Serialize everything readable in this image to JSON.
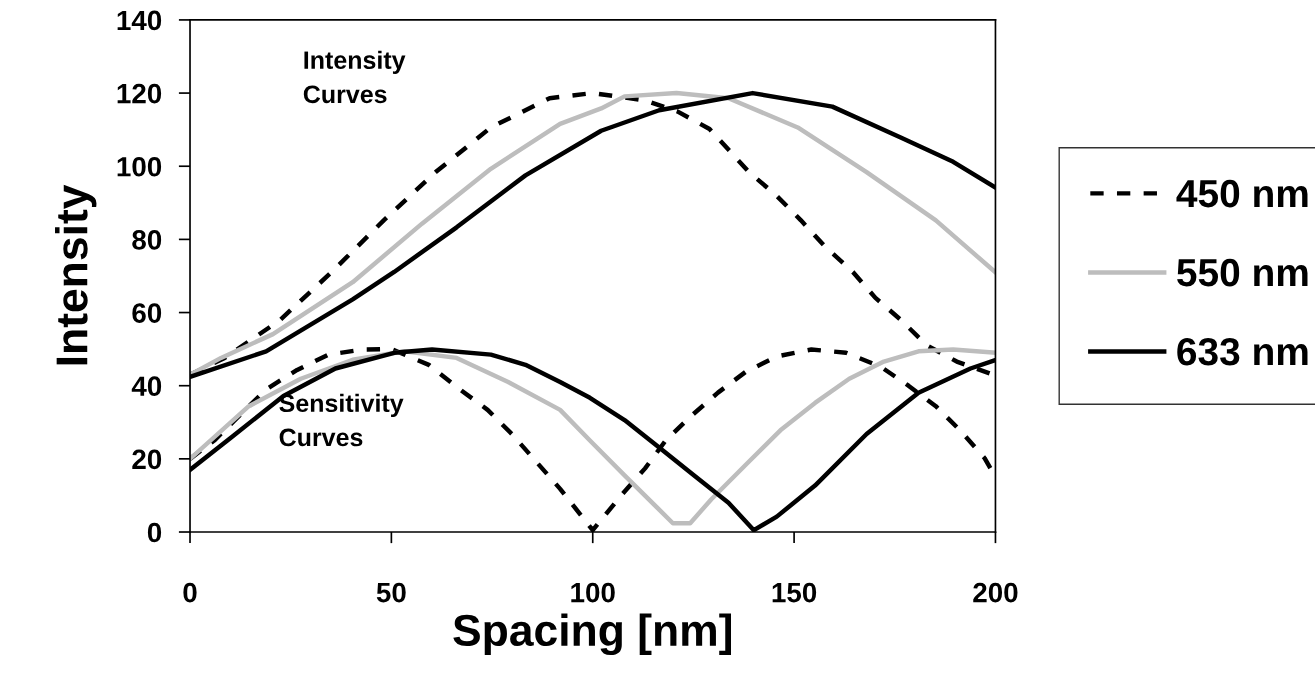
{
  "chart_data": {
    "type": "line",
    "xlabel": "Spacing [nm]",
    "ylabel": "Intensity",
    "xlim": [
      0,
      200
    ],
    "xticks": [
      0,
      50,
      100,
      150,
      200
    ],
    "ylim": [
      0,
      140
    ],
    "yticks": [
      0,
      20,
      40,
      60,
      80,
      100,
      120,
      140
    ],
    "grid": false,
    "legend": "right",
    "marker": "none",
    "annotations": [
      "Intensity\nCurves",
      "Sensitivity\nCurves"
    ],
    "series": [
      {
        "name": "450 nm",
        "color": "#000000",
        "line_style": "dashed",
        "x": [
          0,
          8.6,
          22.3,
          35.2,
          48.1,
          61,
          74.7,
          89.3,
          100,
          113,
          121,
          129,
          138.8,
          145.6,
          151.7,
          157.7,
          164.6,
          170.2,
          176.6,
          183,
          190.4,
          200
        ],
        "values": [
          43,
          47.6,
          57.9,
          71.1,
          85.2,
          98.4,
          110.6,
          118.6,
          120,
          118,
          115,
          110.2,
          98.4,
          92,
          85.2,
          78,
          71.1,
          64,
          57.9,
          51,
          46.6,
          42.8
        ]
      },
      {
        "name": "550 nm",
        "color": "#bdbdbd",
        "line_style": "solid",
        "x": [
          0,
          7.7,
          20.6,
          40.4,
          57.6,
          74.7,
          91.9,
          102.1,
          107.9,
          120.8,
          133.7,
          150.9,
          168,
          185.2,
          200
        ],
        "values": [
          43,
          47.6,
          54.1,
          68.3,
          84.3,
          99.3,
          111.6,
          115.8,
          119.1,
          120,
          118.6,
          110.6,
          98.4,
          85.2,
          71
        ]
      },
      {
        "name": "633 nm",
        "color": "#000000",
        "line_style": "solid",
        "x": [
          0,
          18.9,
          40.4,
          50.7,
          66.2,
          83.3,
          102.1,
          116.5,
          139.7,
          159.5,
          176.6,
          189.5,
          200
        ],
        "values": [
          42.4,
          49.4,
          63.6,
          71.1,
          83.3,
          97.5,
          109.7,
          115.3,
          120,
          116.3,
          107.8,
          101.2,
          94.2
        ]
      },
      {
        "color": "#000000",
        "line_style": "dashed",
        "x": [
          0,
          6,
          18.9,
          26.6,
          34.4,
          43,
          50,
          59.3,
          67,
          73.9,
          79.9,
          85.9,
          91.9,
          100,
          107,
          113,
          118.1,
          124.2,
          131.1,
          138,
          145.7,
          154.3,
          162.9,
          171.5,
          178.4,
          185.2,
          191.2,
          197.3,
          200
        ],
        "values": [
          20,
          25,
          39,
          44.3,
          48.5,
          49.9,
          50,
          45.7,
          39,
          33.4,
          26.8,
          19.3,
          11.8,
          0.5,
          9.9,
          17.4,
          25,
          31.5,
          38.1,
          43.8,
          48,
          49.9,
          49,
          45.2,
          40,
          34.4,
          27.8,
          20.2,
          15
        ]
      },
      {
        "color": "#bdbdbd",
        "line_style": "solid",
        "x": [
          0,
          14.6,
          27.5,
          40.4,
          53.3,
          66.2,
          79,
          91.9,
          99.3,
          107.9,
          116.5,
          119.9,
          124.2,
          129.4,
          138,
          146.6,
          155.2,
          163.7,
          172.3,
          180.9,
          189.5,
          200
        ],
        "values": [
          20,
          34.4,
          41.9,
          47.1,
          49.4,
          47.6,
          41,
          33.4,
          25,
          15.5,
          6.1,
          2.4,
          2.4,
          8.9,
          18.4,
          27.8,
          35.3,
          41.9,
          46.6,
          49.4,
          49.9,
          49
        ]
      },
      {
        "color": "#000000",
        "line_style": "solid",
        "x": [
          0,
          10.3,
          23.2,
          36.1,
          50.7,
          60.1,
          74.7,
          83.3,
          91.9,
          99.3,
          107.9,
          116.5,
          125.1,
          133.7,
          140,
          145.7,
          155.2,
          168,
          180.9,
          193.8,
          200
        ],
        "values": [
          17,
          25.9,
          37.2,
          44.7,
          49,
          49.9,
          48.5,
          45.7,
          41,
          36.7,
          30.6,
          23.1,
          15.5,
          8,
          0.5,
          4.2,
          12.7,
          26.8,
          38.1,
          44.7,
          47
        ]
      }
    ]
  }
}
